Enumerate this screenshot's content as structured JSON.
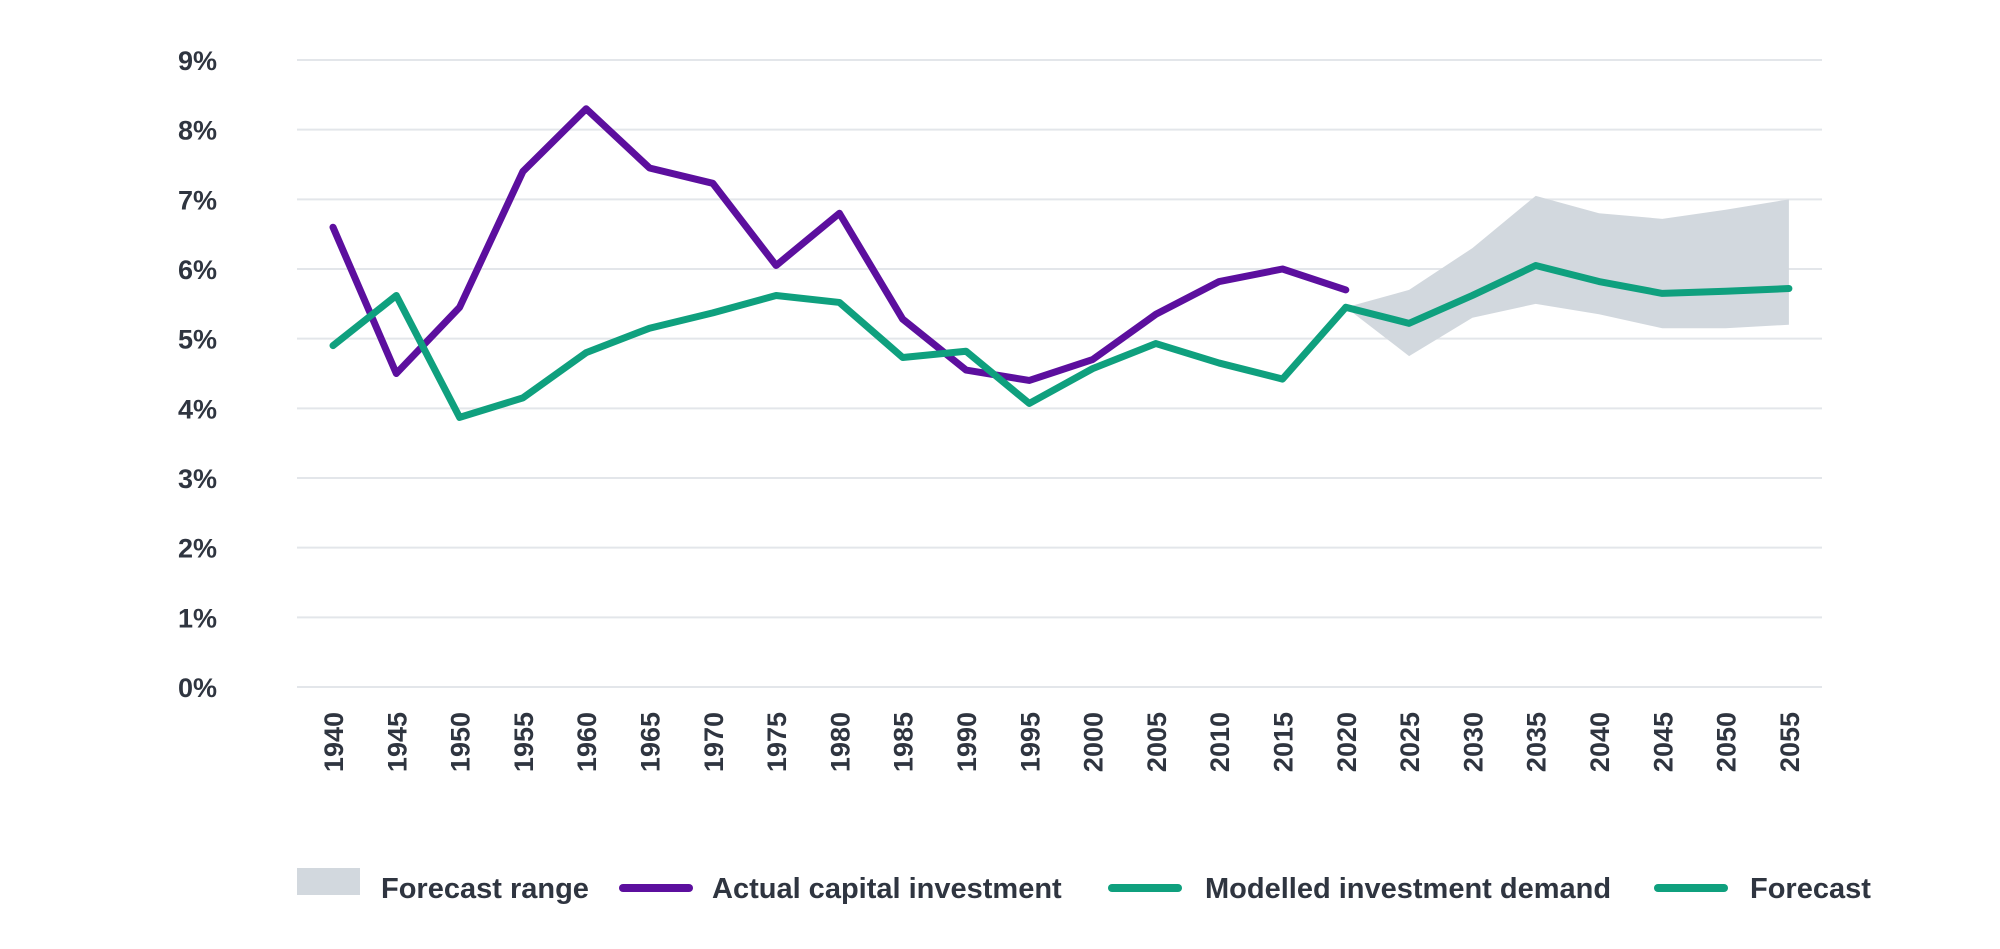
{
  "chart_data": {
    "type": "line",
    "title": "",
    "xlabel": "",
    "ylabel": "",
    "y_unit": "%",
    "ylim": [
      0,
      9
    ],
    "yticks": [
      0,
      1,
      2,
      3,
      4,
      5,
      6,
      7,
      8,
      9
    ],
    "ytick_labels": [
      "0%",
      "1%",
      "2%",
      "3%",
      "4%",
      "5%",
      "6%",
      "7%",
      "8%",
      "9%"
    ],
    "grid": "horizontal",
    "x_tick_labels": [
      "1940",
      "1945",
      "1950",
      "1955",
      "1960",
      "1965",
      "1970",
      "1975",
      "1980",
      "1985",
      "1990",
      "1995",
      "2000",
      "2005",
      "2010",
      "2015",
      "2020",
      "2025",
      "2030",
      "2035",
      "2040",
      "2045",
      "2050",
      "2055"
    ],
    "legend_position": "bottom",
    "band": {
      "name": "Forecast range",
      "color": "#d2d8de",
      "x": [
        2020,
        2025,
        2030,
        2035,
        2040,
        2045,
        2050,
        2055
      ],
      "lower": [
        5.45,
        4.75,
        5.3,
        5.5,
        5.35,
        5.15,
        5.15,
        5.2
      ],
      "upper": [
        5.45,
        5.7,
        6.3,
        7.05,
        6.8,
        6.72,
        6.85,
        7.0
      ]
    },
    "series": [
      {
        "name": "Actual capital investment",
        "color": "#5c0f9e",
        "x": [
          1940,
          1945,
          1950,
          1955,
          1960,
          1965,
          1970,
          1975,
          1980,
          1985,
          1990,
          1995,
          2000,
          2005,
          2010,
          2015,
          2020
        ],
        "values": [
          6.6,
          4.5,
          5.45,
          7.4,
          8.3,
          7.45,
          7.23,
          6.05,
          6.8,
          5.28,
          4.55,
          4.4,
          4.7,
          5.35,
          5.82,
          6.0,
          5.7
        ]
      },
      {
        "name": "Modelled investment demand",
        "color": "#0fa07e",
        "x": [
          1940,
          1945,
          1950,
          1955,
          1960,
          1965,
          1970,
          1975,
          1980,
          1985,
          1990,
          1995,
          2000,
          2005,
          2010,
          2015,
          2020
        ],
        "values": [
          4.9,
          5.62,
          3.87,
          4.15,
          4.8,
          5.15,
          5.37,
          5.62,
          5.52,
          4.73,
          4.82,
          4.07,
          4.57,
          4.93,
          4.65,
          4.42,
          5.45
        ]
      },
      {
        "name": "Forecast",
        "color": "#0fa07e",
        "x": [
          2020,
          2025,
          2030,
          2035,
          2040,
          2045,
          2050,
          2055
        ],
        "values": [
          5.45,
          5.22,
          5.62,
          6.05,
          5.82,
          5.65,
          5.68,
          5.72
        ]
      }
    ]
  }
}
